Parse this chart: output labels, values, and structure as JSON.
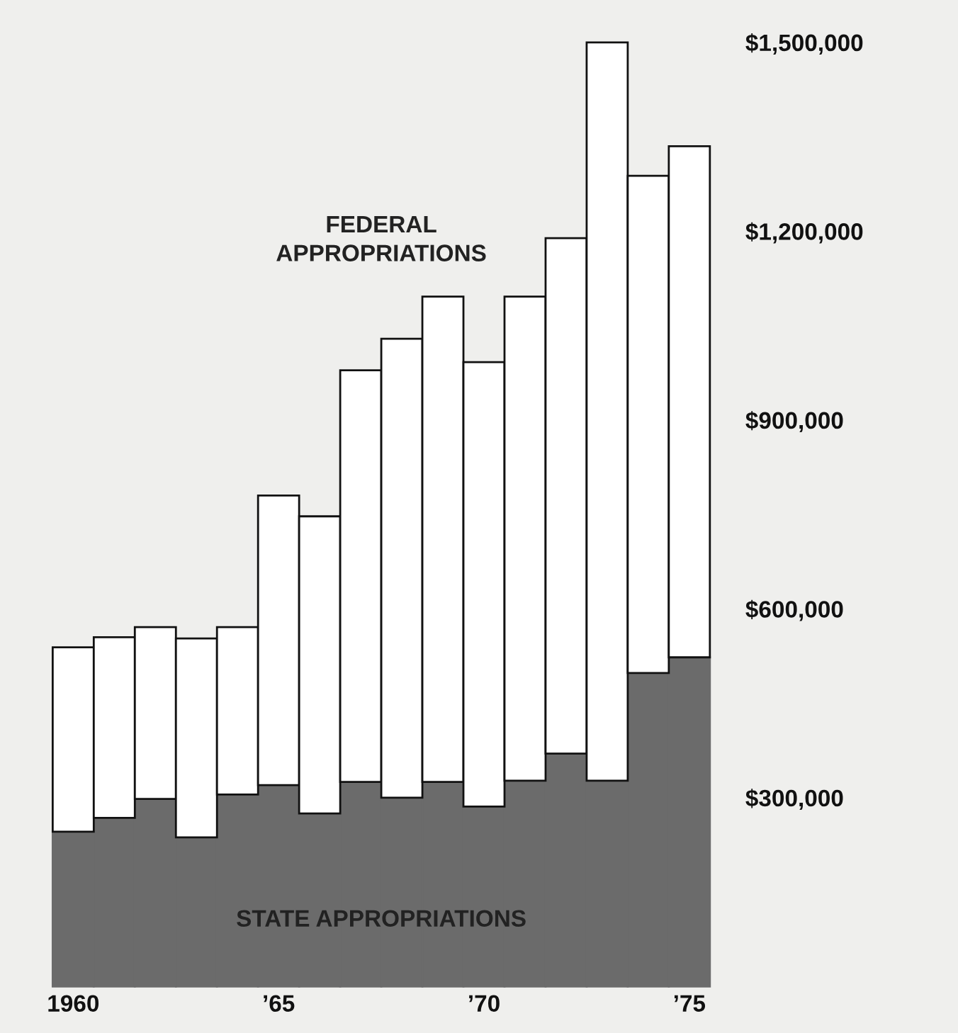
{
  "chart_data": {
    "type": "bar",
    "stacked": true,
    "categories": [
      "1960",
      null,
      null,
      null,
      null,
      "’65",
      null,
      null,
      null,
      null,
      "’70",
      null,
      null,
      null,
      null,
      "’75"
    ],
    "series": [
      {
        "name": "STATE APPROPRIATIONS",
        "color": "#6b6b6b",
        "values": [
          246000,
          268000,
          298000,
          237000,
          305000,
          320000,
          275000,
          325000,
          300000,
          325000,
          286000,
          327000,
          370000,
          327000,
          498000,
          523000
        ]
      },
      {
        "name": "FEDERAL\nAPPROPRIATIONS",
        "color": "#ffffff",
        "values": [
          293000,
          287000,
          273000,
          316000,
          266000,
          460000,
          472000,
          654000,
          729000,
          771000,
          706000,
          769000,
          819000,
          1173000,
          790000,
          812000
        ]
      }
    ],
    "ylim": [
      0,
      1500000
    ],
    "yticks": [
      {
        "value": 300000,
        "label": "$300,000"
      },
      {
        "value": 600000,
        "label": "$600,000"
      },
      {
        "value": 900000,
        "label": "$900,000"
      },
      {
        "value": 1200000,
        "label": "$1,200,000"
      },
      {
        "value": 1500000,
        "label": "$1,500,000"
      }
    ],
    "grid": false,
    "legend": false
  }
}
